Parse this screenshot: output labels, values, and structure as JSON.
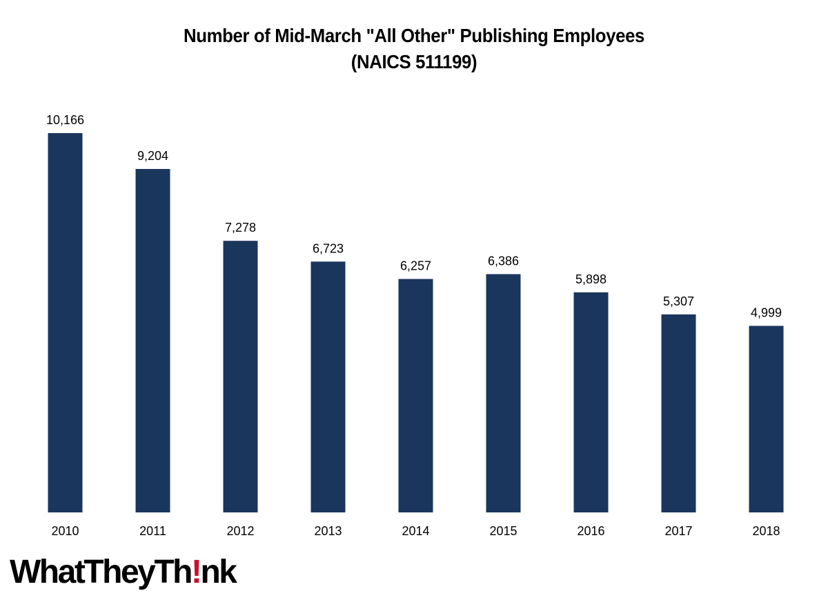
{
  "chart_data": {
    "type": "bar",
    "title_lines": [
      "Number of Mid-March \"All Other\" Publishing Employees",
      "(NAICS 511199)"
    ],
    "categories": [
      "2010",
      "2011",
      "2012",
      "2013",
      "2014",
      "2015",
      "2016",
      "2017",
      "2018"
    ],
    "values": [
      10166,
      9204,
      7278,
      6723,
      6257,
      6386,
      5898,
      5307,
      4999
    ],
    "value_labels": [
      "10,166",
      "9,204",
      "7,278",
      "6,723",
      "6,257",
      "6,386",
      "5,898",
      "5,307",
      "4,999"
    ],
    "xlabel": "",
    "ylabel": "",
    "ylim": [
      0,
      10166
    ],
    "grid": false,
    "legend": "none",
    "bar_color": "#1b365d"
  },
  "logo": {
    "text_before": "WhatTheyTh",
    "text_mark": "!",
    "text_after": "nk",
    "mark_color": "#c8102e"
  }
}
